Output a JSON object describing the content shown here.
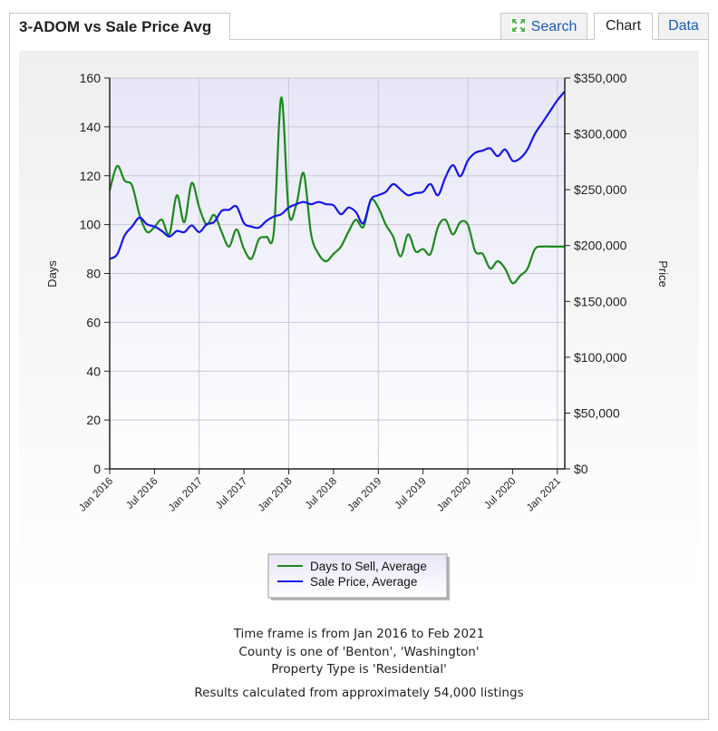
{
  "header": {
    "title": "3-ADOM vs Sale Price Avg",
    "tabs": {
      "search": "Search",
      "chart": "Chart",
      "data": "Data"
    },
    "active_tab": "Chart",
    "search_icon": "expand-arrows-icon"
  },
  "colors": {
    "days": "#1a8a1a",
    "price": "#1515ee",
    "plot_top": "#e8e8fa",
    "plot_bottom": "#ffffff",
    "link": "#1a5bb8"
  },
  "chart_data": {
    "type": "line",
    "title": "",
    "x_ticks": [
      "Jan 2016",
      "Jul 2016",
      "Jan 2017",
      "Jul 2017",
      "Jan 2018",
      "Jul 2018",
      "Jan 2019",
      "Jul 2019",
      "Jan 2020",
      "Jul 2020",
      "Jan 2021"
    ],
    "x_tick_months": [
      0,
      6,
      12,
      18,
      24,
      30,
      36,
      42,
      48,
      54,
      60
    ],
    "xlim_months": [
      0,
      61
    ],
    "ylabel_left": "Days",
    "ylabel_right": "Price",
    "ylim_left": [
      0,
      160
    ],
    "ylim_right": [
      0,
      350000
    ],
    "y_ticks_left": [
      "0",
      "20",
      "40",
      "60",
      "80",
      "100",
      "120",
      "140",
      "160"
    ],
    "y_ticks_right": [
      "$0",
      "$50,000",
      "$100,000",
      "$150,000",
      "$200,000",
      "$250,000",
      "$300,000",
      "$350,000"
    ],
    "grid": true,
    "legend_position": "bottom-center",
    "series": [
      {
        "name": "Days to Sell, Average",
        "axis": "left",
        "color": "#1a8a1a",
        "x": [
          0,
          1,
          2,
          3,
          4,
          5,
          6,
          7,
          8,
          9,
          10,
          11,
          12,
          13,
          14,
          15,
          16,
          17,
          18,
          19,
          20,
          21,
          22,
          23,
          24,
          25,
          26,
          27,
          28,
          29,
          30,
          31,
          32,
          33,
          34,
          35,
          36,
          37,
          38,
          39,
          40,
          41,
          42,
          43,
          44,
          45,
          46,
          47,
          48,
          49,
          50,
          51,
          52,
          53,
          54,
          55,
          56,
          57,
          58,
          59,
          60,
          61
        ],
        "values": [
          114,
          124,
          118,
          116,
          104,
          97,
          99,
          102,
          96,
          112,
          101,
          117,
          107,
          100,
          104,
          97,
          91,
          98,
          90,
          86,
          94,
          95,
          97,
          152,
          105,
          108,
          121,
          96,
          88,
          85,
          88,
          91,
          97,
          102,
          99,
          110,
          107,
          100,
          95,
          87,
          96,
          89,
          90,
          88,
          99,
          102,
          96,
          101,
          100,
          89,
          88,
          82,
          85,
          82,
          76,
          79,
          82,
          90,
          91,
          91,
          91,
          91
        ]
      },
      {
        "name": "Sale Price, Average",
        "axis": "right",
        "color": "#1515ee",
        "x": [
          0,
          1,
          2,
          3,
          4,
          5,
          6,
          7,
          8,
          9,
          10,
          11,
          12,
          13,
          14,
          15,
          16,
          17,
          18,
          19,
          20,
          21,
          22,
          23,
          24,
          25,
          26,
          27,
          28,
          29,
          30,
          31,
          32,
          33,
          34,
          35,
          36,
          37,
          38,
          39,
          40,
          41,
          42,
          43,
          44,
          45,
          46,
          47,
          48,
          49,
          50,
          51,
          52,
          53,
          54,
          55,
          56,
          57,
          58,
          59,
          60,
          61
        ],
        "values": [
          188,
          192,
          209,
          217,
          225,
          219,
          217,
          213,
          208,
          213,
          212,
          218,
          212,
          219,
          221,
          231,
          232,
          235,
          220,
          217,
          216,
          222,
          226,
          228,
          234,
          237,
          239,
          237,
          239,
          237,
          236,
          228,
          234,
          230,
          220,
          241,
          245,
          248,
          255,
          250,
          245,
          247,
          248,
          255,
          245,
          261,
          272,
          262,
          276,
          283,
          285,
          287,
          280,
          286,
          276,
          278,
          286,
          300,
          310,
          320,
          330,
          338
        ]
      },
      {
        "_note": "",
        "name": "",
        "values": []
      }
    ]
  },
  "legend": {
    "days_label": "Days to Sell, Average",
    "price_label": "Sale Price, Average"
  },
  "footer": {
    "line1": "Time frame is from Jan 2016 to Feb 2021",
    "line2": "County is one of 'Benton', 'Washington'",
    "line3": "Property Type is 'Residential'",
    "line4": "Results calculated from approximately 54,000 listings"
  }
}
